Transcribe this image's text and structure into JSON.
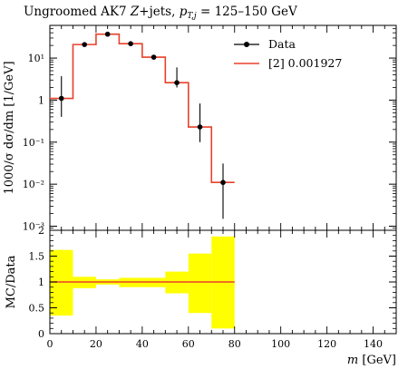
{
  "title": "Ungroomed AK7 Z+jets, p_{T,j} = 125–150 GeV",
  "title_parts": {
    "prefix": "Ungroomed AK7 ",
    "z": "Z",
    "mid": "+jets, ",
    "pt": "p",
    "pt_sub": "T,j",
    "range": " = 125–150 GeV"
  },
  "colors": {
    "data": "#000000",
    "mc_line": "#e8412a",
    "band": "#ffff00",
    "ratio_line": "#e8412a"
  },
  "chart_data": [
    {
      "type": "line",
      "panel": "main",
      "xlabel": "",
      "ylabel": "1000/σ dσ/dm [1/GeV]",
      "yscale": "log",
      "xlim": [
        0,
        150
      ],
      "ylim": [
        0.0008,
        60
      ],
      "y_ticks": [
        0.001,
        0.01,
        0.1,
        1,
        10
      ],
      "y_tick_labels": [
        "10⁻³",
        "10⁻²",
        "10⁻¹",
        "1",
        "10¹"
      ],
      "legend_position": "top-right",
      "series": [
        {
          "name": "Data",
          "kind": "points",
          "x": [
            5,
            15,
            25,
            35,
            45,
            55,
            65,
            75
          ],
          "y": [
            1.1,
            21,
            37,
            22,
            10.5,
            2.6,
            0.23,
            0.011
          ],
          "y_err_low": [
            0.7,
            0.8,
            1.0,
            0.8,
            0.7,
            0.6,
            0.13,
            0.0095
          ],
          "y_err_high": [
            2.6,
            1.5,
            1.5,
            1.5,
            1.0,
            3.4,
            0.6,
            0.02
          ]
        },
        {
          "name": "[2] 0.001927",
          "kind": "step",
          "bin_edges": [
            0,
            10,
            20,
            30,
            40,
            50,
            60,
            70,
            80
          ],
          "values": [
            1.1,
            21,
            37,
            22,
            10.5,
            2.6,
            0.23,
            0.011
          ]
        }
      ]
    },
    {
      "type": "area",
      "panel": "ratio",
      "xlabel": "m [GeV]",
      "ylabel": "MC/Data",
      "xlim": [
        0,
        150
      ],
      "ylim": [
        0,
        2
      ],
      "x_ticks": [
        0,
        20,
        40,
        60,
        80,
        100,
        120,
        140
      ],
      "x_tick_labels": [
        "0",
        "20",
        "40",
        "60",
        "80",
        "100",
        "120",
        "140"
      ],
      "y_ticks": [
        0,
        0.5,
        1,
        1.5,
        2
      ],
      "y_tick_labels": [
        "0",
        "0.5",
        "1",
        "1.5",
        "2"
      ],
      "band": {
        "bin_edges": [
          0,
          10,
          20,
          30,
          40,
          50,
          60,
          70,
          80
        ],
        "low": [
          0.35,
          0.88,
          0.95,
          0.9,
          0.9,
          0.78,
          0.4,
          0.1
        ],
        "high": [
          1.62,
          1.1,
          1.05,
          1.08,
          1.08,
          1.2,
          1.55,
          1.88
        ]
      },
      "ratio_value": 1
    }
  ]
}
